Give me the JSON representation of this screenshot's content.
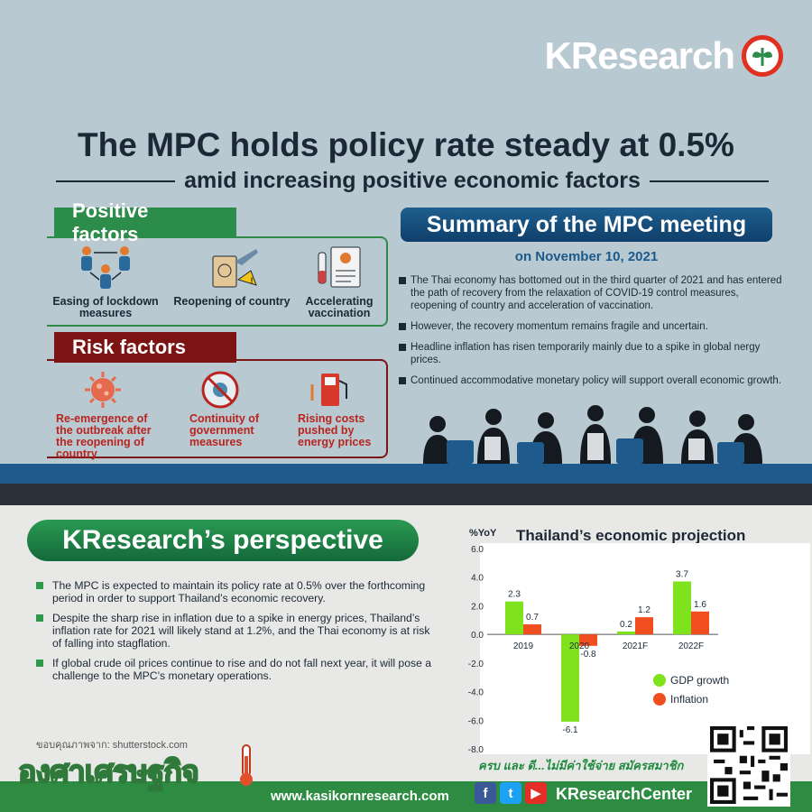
{
  "brand": {
    "logo": "KResearch"
  },
  "header": {
    "title": "The MPC holds policy rate steady at 0.5%",
    "subtitle": "amid increasing positive economic factors"
  },
  "positive": {
    "heading": "Positive factors",
    "items": [
      {
        "icon": "people-distancing-icon",
        "l1": "Easing of lockdown",
        "l2": "measures"
      },
      {
        "icon": "passport-plane-icon",
        "l1": "Reopening of country",
        "l2": ""
      },
      {
        "icon": "vaccine-icon",
        "l1": "Accelerating",
        "l2": "vaccination"
      }
    ]
  },
  "risk": {
    "heading": "Risk factors",
    "items": [
      {
        "icon": "virus-icon",
        "l1": "Re-emergence of",
        "l2": "the outbreak after",
        "l3": "the reopening of",
        "l4": "country"
      },
      {
        "icon": "no-virus-icon",
        "l1": "Continuity of",
        "l2": "government",
        "l3": "measures",
        "l4": ""
      },
      {
        "icon": "fuel-pump-icon",
        "l1": "Rising costs",
        "l2": "pushed by",
        "l3": "energy prices",
        "l4": ""
      }
    ]
  },
  "summary": {
    "heading": "Summary of the MPC meeting",
    "date": "on November 10, 2021",
    "points": [
      "The Thai economy has bottomed out in the third quarter of 2021 and has entered the path of recovery from the relaxation of COVID-19 control measures, reopening of country and acceleration of vaccination.",
      "However, the recovery momentum remains fragile and uncertain.",
      "Headline inflation has risen temporarily mainly due to a spike in global nergy prices.",
      "Continued accommodative monetary policy will support overall economic growth."
    ]
  },
  "perspective": {
    "heading": "KResearch’s perspective",
    "points": [
      "The MPC is expected to maintain its policy rate at 0.5% over the forthcoming period in order to support Thailand’s economic recovery.",
      "Despite the sharp rise in inflation due to a spike in energy prices, Thailand’s inflation rate for 2021 will likely stand at 1.2%, and the Thai economy is at risk of falling into stagflation.",
      "If global crude oil prices continue to rise and do not fall next year, it will pose a challenge to the MPC’s monetary operations."
    ],
    "credit": "ขอบคุณภาพจาก: shutterstock.com"
  },
  "chart_data": {
    "type": "bar",
    "title": "Thailand’s economic projection",
    "ylabel": "%YoY",
    "ylim": [
      -8.0,
      6.0
    ],
    "yticks": [
      "6.0",
      "4.0",
      "2.0",
      "0.0",
      "-2.0",
      "-4.0",
      "-6.0",
      "-8.0"
    ],
    "categories": [
      "2019",
      "2020",
      "2021F",
      "2022F"
    ],
    "series": [
      {
        "name": "GDP growth",
        "color": "#7ee21c",
        "values": [
          2.3,
          -6.1,
          0.2,
          3.7
        ],
        "labels": [
          "2.3",
          "-6.1",
          "0.2",
          "3.7"
        ]
      },
      {
        "name": "Inflation",
        "color": "#f04e1e",
        "values": [
          0.7,
          -0.8,
          1.2,
          1.6
        ],
        "labels": [
          "0.7",
          "-0.8",
          "1.2",
          "1.6"
        ]
      }
    ],
    "legend": "bottom-right"
  },
  "footer": {
    "brand_name": "องศาเศรษฐกิจ",
    "tagline": "ครบ และ ดี...ไม่มีค่าใช้จ่าย สมัครสมาชิก",
    "site": "www.kasikornresearch.com",
    "handle": "KResearchCenter"
  }
}
